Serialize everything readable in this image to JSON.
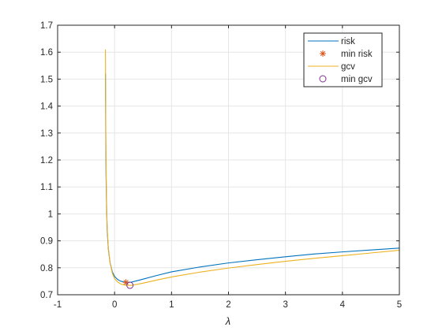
{
  "chart_data": {
    "type": "line",
    "xlabel": "λ",
    "ylabel": "",
    "title": "",
    "xlim": [
      -1,
      5
    ],
    "ylim": [
      0.7,
      1.7
    ],
    "xticks": [
      "-1",
      "0",
      "1",
      "2",
      "3",
      "4",
      "5"
    ],
    "yticks": [
      "0.7",
      "0.8",
      "0.9",
      "1",
      "1.1",
      "1.2",
      "1.3",
      "1.4",
      "1.5",
      "1.6",
      "1.7"
    ],
    "grid": true,
    "legend_placement": "top-right",
    "series": [
      {
        "name": "risk",
        "kind": "line",
        "color": "#0072BD",
        "points": [
          [
            -0.16,
            1.52
          ],
          [
            -0.155,
            1.3
          ],
          [
            -0.15,
            1.15
          ],
          [
            -0.14,
            1.02
          ],
          [
            -0.13,
            0.94
          ],
          [
            -0.11,
            0.87
          ],
          [
            -0.08,
            0.82
          ],
          [
            -0.04,
            0.785
          ],
          [
            0.0,
            0.768
          ],
          [
            0.05,
            0.757
          ],
          [
            0.1,
            0.751
          ],
          [
            0.15,
            0.748
          ],
          [
            0.2,
            0.746
          ],
          [
            0.3,
            0.747
          ],
          [
            0.5,
            0.758
          ],
          [
            0.75,
            0.772
          ],
          [
            1.0,
            0.785
          ],
          [
            1.5,
            0.803
          ],
          [
            2.0,
            0.818
          ],
          [
            2.5,
            0.83
          ],
          [
            3.0,
            0.841
          ],
          [
            3.5,
            0.851
          ],
          [
            4.0,
            0.859
          ],
          [
            4.5,
            0.866
          ],
          [
            5.0,
            0.873
          ]
        ]
      },
      {
        "name": "min risk",
        "kind": "marker",
        "marker": "asterisk",
        "color": "#D95319",
        "points": [
          [
            0.2,
            0.746
          ]
        ]
      },
      {
        "name": "gcv",
        "kind": "line",
        "color": "#EDB120",
        "points": [
          [
            -0.16,
            1.61
          ],
          [
            -0.155,
            1.35
          ],
          [
            -0.15,
            1.18
          ],
          [
            -0.14,
            1.04
          ],
          [
            -0.13,
            0.95
          ],
          [
            -0.11,
            0.875
          ],
          [
            -0.08,
            0.82
          ],
          [
            -0.04,
            0.78
          ],
          [
            0.0,
            0.76
          ],
          [
            0.05,
            0.748
          ],
          [
            0.1,
            0.741
          ],
          [
            0.15,
            0.737
          ],
          [
            0.22,
            0.735
          ],
          [
            0.3,
            0.735
          ],
          [
            0.5,
            0.743
          ],
          [
            0.75,
            0.755
          ],
          [
            1.0,
            0.766
          ],
          [
            1.5,
            0.784
          ],
          [
            2.0,
            0.799
          ],
          [
            2.5,
            0.812
          ],
          [
            3.0,
            0.824
          ],
          [
            3.5,
            0.835
          ],
          [
            4.0,
            0.845
          ],
          [
            4.5,
            0.855
          ],
          [
            5.0,
            0.865
          ]
        ]
      },
      {
        "name": "min gcv",
        "kind": "marker",
        "marker": "circle",
        "color": "#7E2F8E",
        "points": [
          [
            0.27,
            0.735
          ]
        ]
      }
    ]
  }
}
